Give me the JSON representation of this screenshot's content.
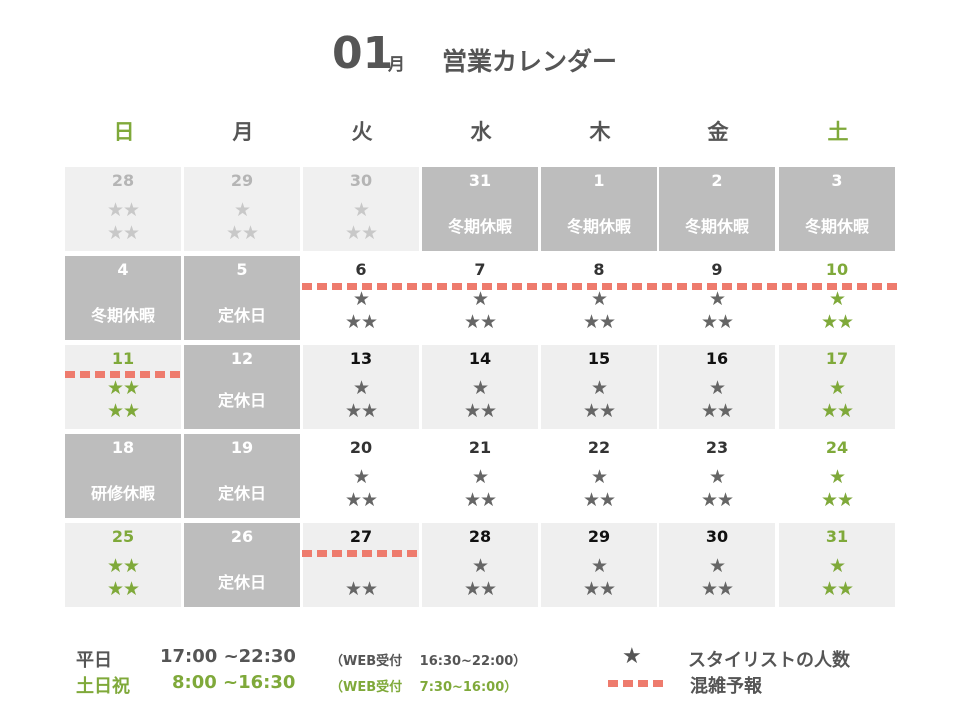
{
  "header": {
    "month": "01",
    "month_unit": "月",
    "title": "営業カレンダー"
  },
  "colors": {
    "weekend": "#7fa93a",
    "text": "#555555",
    "closed": "#bdbdbd",
    "crowd": "#ee7b6d"
  },
  "weekdays": [
    "日",
    "月",
    "火",
    "水",
    "木",
    "金",
    "土"
  ],
  "weeks": [
    [
      {
        "day": "28",
        "type": "past",
        "stars_top": "★★",
        "stars_bottom": "★★"
      },
      {
        "day": "29",
        "type": "past",
        "stars_top": "★",
        "stars_bottom": "★★"
      },
      {
        "day": "30",
        "type": "past",
        "stars_top": "★",
        "stars_bottom": "★★"
      },
      {
        "day": "31",
        "type": "closed",
        "label": "冬期休暇"
      },
      {
        "day": "1",
        "type": "closed",
        "label": "冬期休暇"
      },
      {
        "day": "2",
        "type": "closed",
        "label": "冬期休暇"
      },
      {
        "day": "3",
        "type": "closed",
        "label": "冬期休暇"
      }
    ],
    [
      {
        "day": "4",
        "type": "closed",
        "label": "冬期休暇"
      },
      {
        "day": "5",
        "type": "closed",
        "label": "定休日"
      },
      {
        "day": "6",
        "type": "open",
        "stars_top": "★",
        "stars_bottom": "★★"
      },
      {
        "day": "7",
        "type": "open",
        "stars_top": "★",
        "stars_bottom": "★★"
      },
      {
        "day": "8",
        "type": "open",
        "stars_top": "★",
        "stars_bottom": "★★"
      },
      {
        "day": "9",
        "type": "open",
        "stars_top": "★",
        "stars_bottom": "★★"
      },
      {
        "day": "10",
        "type": "open",
        "weekend": true,
        "stars_top": "★",
        "stars_bottom": "★★"
      }
    ],
    [
      {
        "day": "11",
        "type": "light",
        "weekend": true,
        "stars_top": "★★",
        "stars_bottom": "★★"
      },
      {
        "day": "12",
        "type": "closed",
        "label": "定休日"
      },
      {
        "day": "13",
        "type": "light",
        "stars_top": "★",
        "stars_bottom": "★★"
      },
      {
        "day": "14",
        "type": "light",
        "stars_top": "★",
        "stars_bottom": "★★"
      },
      {
        "day": "15",
        "type": "light",
        "stars_top": "★",
        "stars_bottom": "★★"
      },
      {
        "day": "16",
        "type": "light",
        "stars_top": "★",
        "stars_bottom": "★★"
      },
      {
        "day": "17",
        "type": "light",
        "weekend": true,
        "stars_top": "★",
        "stars_bottom": "★★"
      }
    ],
    [
      {
        "day": "18",
        "type": "closed",
        "label": "研修休暇"
      },
      {
        "day": "19",
        "type": "closed",
        "label": "定休日"
      },
      {
        "day": "20",
        "type": "open",
        "stars_top": "★",
        "stars_bottom": "★★"
      },
      {
        "day": "21",
        "type": "open",
        "stars_top": "★",
        "stars_bottom": "★★"
      },
      {
        "day": "22",
        "type": "open",
        "stars_top": "★",
        "stars_bottom": "★★"
      },
      {
        "day": "23",
        "type": "open",
        "stars_top": "★",
        "stars_bottom": "★★"
      },
      {
        "day": "24",
        "type": "open",
        "weekend": true,
        "stars_top": "★",
        "stars_bottom": "★★"
      }
    ],
    [
      {
        "day": "25",
        "type": "light",
        "weekend": true,
        "stars_top": "★★",
        "stars_bottom": "★★"
      },
      {
        "day": "26",
        "type": "closed",
        "label": "定休日"
      },
      {
        "day": "27",
        "type": "light",
        "stars_top": "",
        "stars_bottom": "★★"
      },
      {
        "day": "28",
        "type": "light",
        "stars_top": "★",
        "stars_bottom": "★★"
      },
      {
        "day": "29",
        "type": "light",
        "stars_top": "★",
        "stars_bottom": "★★"
      },
      {
        "day": "30",
        "type": "light",
        "stars_top": "★",
        "stars_bottom": "★★"
      },
      {
        "day": "31",
        "type": "light",
        "weekend": true,
        "stars_top": "★",
        "stars_bottom": "★★"
      }
    ]
  ],
  "legend": {
    "weekday_label": "平日",
    "weekday_hours": "17:00 ~22:30",
    "weekday_web": "（WEB受付　 16:30~22:00）",
    "weekend_label": "土日祝",
    "weekend_hours": "8:00 ~16:30",
    "weekend_web": "（WEB受付　 7:30~16:00）",
    "star_symbol": "★",
    "star_text": "スタイリストの人数",
    "crowd_text": "混雑予報"
  }
}
